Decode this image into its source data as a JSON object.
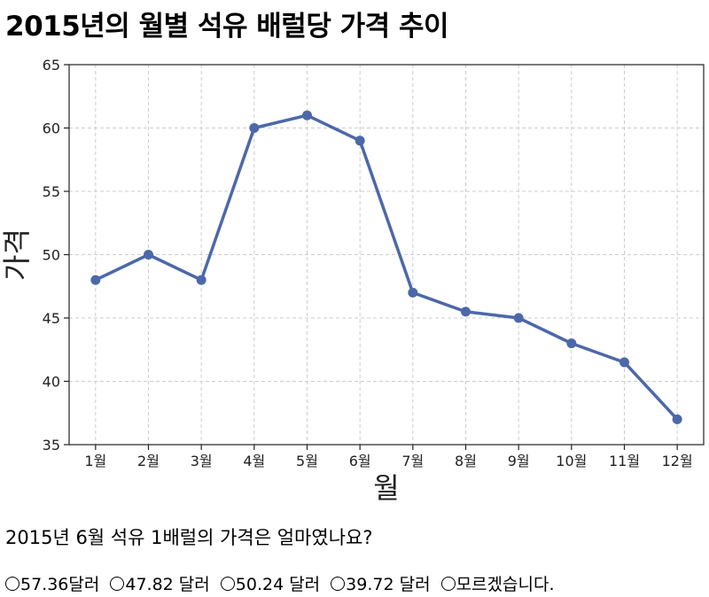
{
  "chart_data": {
    "type": "line",
    "title": "2015년의 월별 석유 배럴당 가격 추이",
    "xlabel": "월",
    "ylabel": "가격",
    "categories": [
      "1월",
      "2월",
      "3월",
      "4월",
      "5월",
      "6월",
      "7월",
      "8월",
      "9월",
      "10월",
      "11월",
      "12월"
    ],
    "series": [
      {
        "values": [
          48,
          50,
          48,
          60,
          61,
          59,
          47,
          45.5,
          45,
          43,
          41.5,
          37
        ]
      }
    ],
    "ylim": [
      35,
      65
    ],
    "yticks": [
      35,
      40,
      45,
      50,
      55,
      60,
      65
    ],
    "grid": true,
    "line_color": "#4c68a8"
  },
  "question": {
    "text": "2015년 6월 석유 1배럴의 가격은 얼마였나요?",
    "options": [
      "57.36달러",
      "47.82 달러",
      "50.24 달러",
      "39.72 달러",
      "모르겠습니다."
    ]
  }
}
